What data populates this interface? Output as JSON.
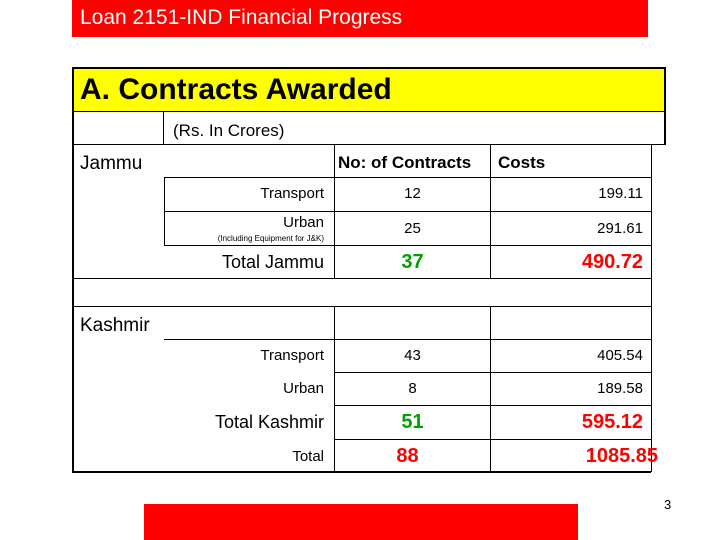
{
  "header": {
    "title": "Loan 2151-IND Financial Progress"
  },
  "section": {
    "title": "A. Contracts Awarded",
    "unit": "(Rs. In Crores)"
  },
  "columns": {
    "contracts": "No: of Contracts",
    "costs": "Costs"
  },
  "jammu": {
    "label": "Jammu",
    "rows": [
      {
        "name": "Transport",
        "contracts": "12",
        "costs": "199.11"
      },
      {
        "name": "Urban",
        "note": "(Including Equipment for J&K)",
        "contracts": "25",
        "costs": "291.61"
      }
    ],
    "total": {
      "name": "Total Jammu",
      "contracts": "37",
      "costs": "490.72"
    }
  },
  "kashmir": {
    "label": "Kashmir",
    "rows": [
      {
        "name": "Transport",
        "contracts": "43",
        "costs": "405.54"
      },
      {
        "name": "Urban",
        "contracts": "8",
        "costs": "189.58"
      }
    ],
    "total": {
      "name": "Total Kashmir",
      "contracts": "51",
      "costs": "595.12"
    }
  },
  "grand_total": {
    "name": "Total",
    "contracts": "88",
    "costs": "1085.85"
  },
  "colors": {
    "header_red": "#ff0000",
    "title_yellow": "#ffff00",
    "total_green": "#00a000",
    "total_red": "#ff0000"
  },
  "page": {
    "number": "3"
  }
}
